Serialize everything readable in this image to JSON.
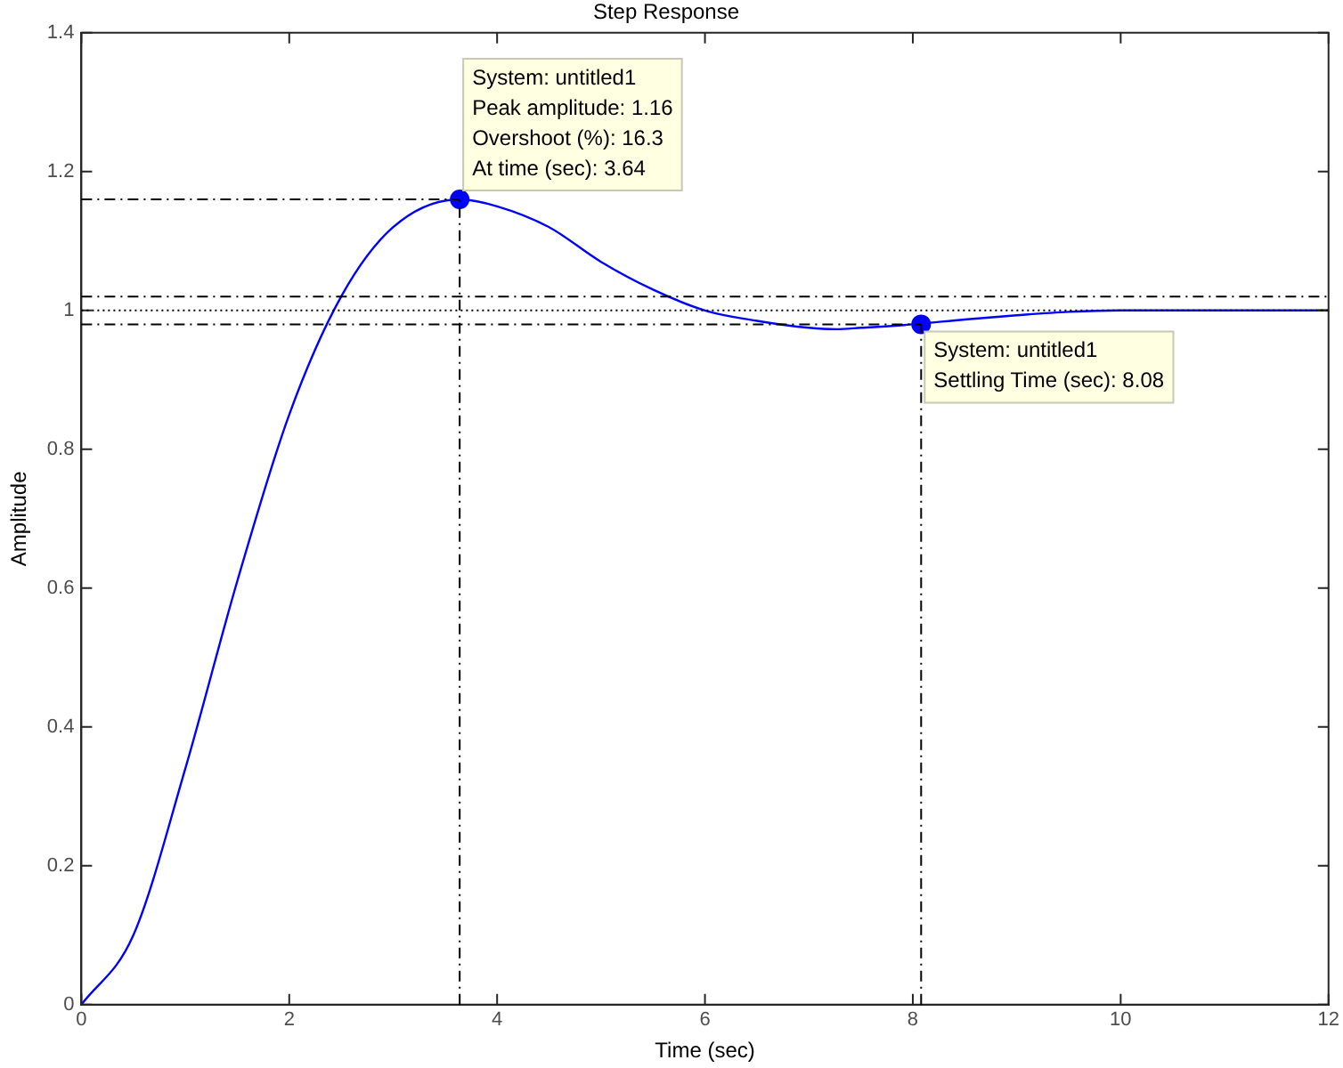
{
  "chart_data": {
    "type": "line",
    "title": "Step Response",
    "xlabel": "Time (sec)",
    "ylabel": "Amplitude",
    "xlim": [
      0,
      12
    ],
    "xticks": [
      0,
      2,
      4,
      6,
      8,
      10,
      12
    ],
    "ylim": [
      0,
      1.4
    ],
    "yticks": [
      0,
      0.2,
      0.4,
      0.6,
      0.8,
      1,
      1.2,
      1.4
    ],
    "grid": false,
    "legend": false,
    "line_style": "solid",
    "series": [
      {
        "type": "line",
        "color": "#0000ff",
        "marker": "none",
        "x": [
          0,
          0.5,
          1,
          1.5,
          2,
          2.5,
          3,
          3.64,
          4,
          4.5,
          5,
          5.5,
          6,
          6.5,
          7,
          7.26,
          7.5,
          8,
          8.5,
          9,
          9.5,
          10,
          11,
          12
        ],
        "values": [
          0,
          0.1,
          0.34,
          0.61,
          0.85,
          1.02,
          1.12,
          1.16,
          1.15,
          1.12,
          1.07,
          1.03,
          1.0,
          0.985,
          0.975,
          0.973,
          0.975,
          0.98,
          0.987,
          0.993,
          0.998,
          1.0,
          1.0,
          1.0
        ]
      },
      {
        "type": "scatter",
        "color": "#0000ff",
        "marker": "circle",
        "x": [
          3.64,
          8.08
        ],
        "values": [
          1.16,
          0.98
        ]
      }
    ],
    "ref_lines": [
      {
        "axis": "y",
        "value": 1.02,
        "color": "#000000",
        "line_style": "dashed"
      },
      {
        "axis": "y",
        "value": 1,
        "color": "#000000",
        "line_style": "dotted"
      },
      {
        "axis": "y",
        "value": 0.98,
        "color": "#000000",
        "line_style": "dashed"
      },
      {
        "axis": "y",
        "value": 1.16,
        "color": "#000000",
        "line_style": "dashed"
      },
      {
        "axis": "x",
        "value": 3.64,
        "color": "#000000",
        "line_style": "dashed"
      },
      {
        "axis": "x",
        "value": 8.08,
        "color": "#000000",
        "line_style": "dashed"
      }
    ],
    "annotations": [
      {
        "text": "System: untitled1\nPeak amplitude: 1.16\nOvershoot (%): 16.3\nAt time (sec): 3.64",
        "x": 3.64,
        "y": 1.16
      },
      {
        "text": "System: untitled1\nSettling Time (sec): 8.08",
        "x": 8.08,
        "y": 0.98
      }
    ]
  }
}
